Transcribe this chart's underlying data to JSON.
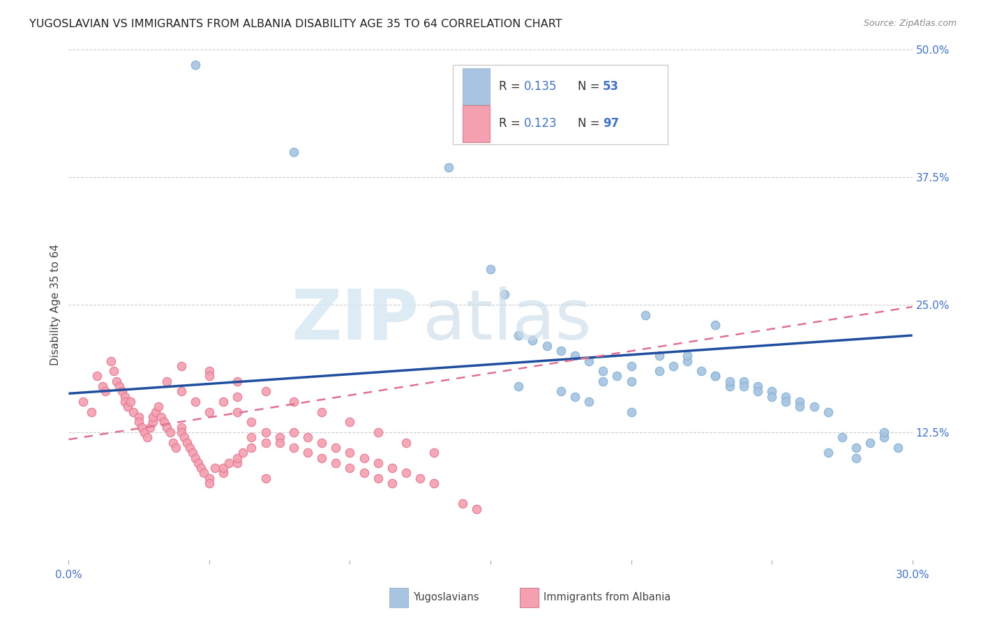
{
  "title": "YUGOSLAVIAN VS IMMIGRANTS FROM ALBANIA DISABILITY AGE 35 TO 64 CORRELATION CHART",
  "source": "Source: ZipAtlas.com",
  "ylabel": "Disability Age 35 to 64",
  "xlim": [
    0.0,
    0.3
  ],
  "ylim": [
    0.0,
    0.5
  ],
  "xticks": [
    0.0,
    0.05,
    0.1,
    0.15,
    0.2,
    0.25,
    0.3
  ],
  "xtick_labels": [
    "0.0%",
    "",
    "",
    "",
    "",
    "",
    "30.0%"
  ],
  "yticks_right": [
    0.125,
    0.25,
    0.375,
    0.5
  ],
  "ytick_right_labels": [
    "12.5%",
    "25.0%",
    "37.5%",
    "50.0%"
  ],
  "color_yugoslavian": "#a8c4e0",
  "color_albania": "#f4a0b0",
  "color_blue_text": "#4472C4",
  "color_trend_yug": "#1f4e9e",
  "color_trend_alb": "#e07090",
  "grid_color": "#cccccc",
  "background_color": "#ffffff",
  "yug_x": [
    0.045,
    0.08,
    0.135,
    0.15,
    0.155,
    0.16,
    0.165,
    0.17,
    0.175,
    0.18,
    0.185,
    0.19,
    0.195,
    0.2,
    0.205,
    0.21,
    0.215,
    0.22,
    0.225,
    0.23,
    0.235,
    0.24,
    0.245,
    0.25,
    0.255,
    0.26,
    0.265,
    0.27,
    0.275,
    0.28,
    0.285,
    0.29,
    0.295,
    0.16,
    0.175,
    0.18,
    0.185,
    0.19,
    0.2,
    0.21,
    0.22,
    0.23,
    0.235,
    0.24,
    0.245,
    0.25,
    0.255,
    0.26,
    0.27,
    0.28,
    0.29,
    0.2,
    0.23
  ],
  "yug_y": [
    0.485,
    0.4,
    0.385,
    0.285,
    0.26,
    0.22,
    0.215,
    0.21,
    0.205,
    0.2,
    0.195,
    0.185,
    0.18,
    0.175,
    0.24,
    0.2,
    0.19,
    0.195,
    0.185,
    0.18,
    0.17,
    0.175,
    0.17,
    0.165,
    0.16,
    0.155,
    0.15,
    0.145,
    0.12,
    0.11,
    0.115,
    0.12,
    0.11,
    0.17,
    0.165,
    0.16,
    0.155,
    0.175,
    0.19,
    0.185,
    0.2,
    0.18,
    0.175,
    0.17,
    0.165,
    0.16,
    0.155,
    0.15,
    0.105,
    0.1,
    0.125,
    0.145,
    0.23
  ],
  "alb_x": [
    0.005,
    0.008,
    0.01,
    0.012,
    0.013,
    0.015,
    0.016,
    0.017,
    0.018,
    0.019,
    0.02,
    0.02,
    0.021,
    0.022,
    0.023,
    0.025,
    0.025,
    0.026,
    0.027,
    0.028,
    0.029,
    0.03,
    0.03,
    0.031,
    0.032,
    0.033,
    0.034,
    0.035,
    0.036,
    0.037,
    0.038,
    0.04,
    0.04,
    0.041,
    0.042,
    0.043,
    0.044,
    0.045,
    0.046,
    0.047,
    0.048,
    0.05,
    0.05,
    0.052,
    0.055,
    0.055,
    0.057,
    0.06,
    0.06,
    0.062,
    0.065,
    0.07,
    0.075,
    0.08,
    0.085,
    0.09,
    0.095,
    0.1,
    0.105,
    0.11,
    0.115,
    0.12,
    0.125,
    0.13,
    0.035,
    0.04,
    0.045,
    0.05,
    0.055,
    0.06,
    0.065,
    0.07,
    0.075,
    0.08,
    0.085,
    0.09,
    0.095,
    0.1,
    0.105,
    0.11,
    0.115,
    0.04,
    0.05,
    0.06,
    0.07,
    0.08,
    0.09,
    0.1,
    0.11,
    0.12,
    0.13,
    0.14,
    0.145,
    0.05,
    0.06,
    0.065,
    0.07
  ],
  "alb_y": [
    0.155,
    0.145,
    0.18,
    0.17,
    0.165,
    0.195,
    0.185,
    0.175,
    0.17,
    0.165,
    0.16,
    0.155,
    0.15,
    0.155,
    0.145,
    0.14,
    0.135,
    0.13,
    0.125,
    0.12,
    0.13,
    0.135,
    0.14,
    0.145,
    0.15,
    0.14,
    0.135,
    0.13,
    0.125,
    0.115,
    0.11,
    0.13,
    0.125,
    0.12,
    0.115,
    0.11,
    0.105,
    0.1,
    0.095,
    0.09,
    0.085,
    0.08,
    0.075,
    0.09,
    0.085,
    0.09,
    0.095,
    0.095,
    0.1,
    0.105,
    0.11,
    0.115,
    0.12,
    0.125,
    0.12,
    0.115,
    0.11,
    0.105,
    0.1,
    0.095,
    0.09,
    0.085,
    0.08,
    0.075,
    0.175,
    0.165,
    0.155,
    0.145,
    0.155,
    0.145,
    0.135,
    0.125,
    0.115,
    0.11,
    0.105,
    0.1,
    0.095,
    0.09,
    0.085,
    0.08,
    0.075,
    0.19,
    0.185,
    0.175,
    0.165,
    0.155,
    0.145,
    0.135,
    0.125,
    0.115,
    0.105,
    0.055,
    0.05,
    0.18,
    0.16,
    0.12,
    0.08
  ],
  "yug_trend_x": [
    0.0,
    0.3
  ],
  "yug_trend_y": [
    0.163,
    0.22
  ],
  "alb_trend_x": [
    0.0,
    0.3
  ],
  "alb_trend_y": [
    0.118,
    0.248
  ]
}
